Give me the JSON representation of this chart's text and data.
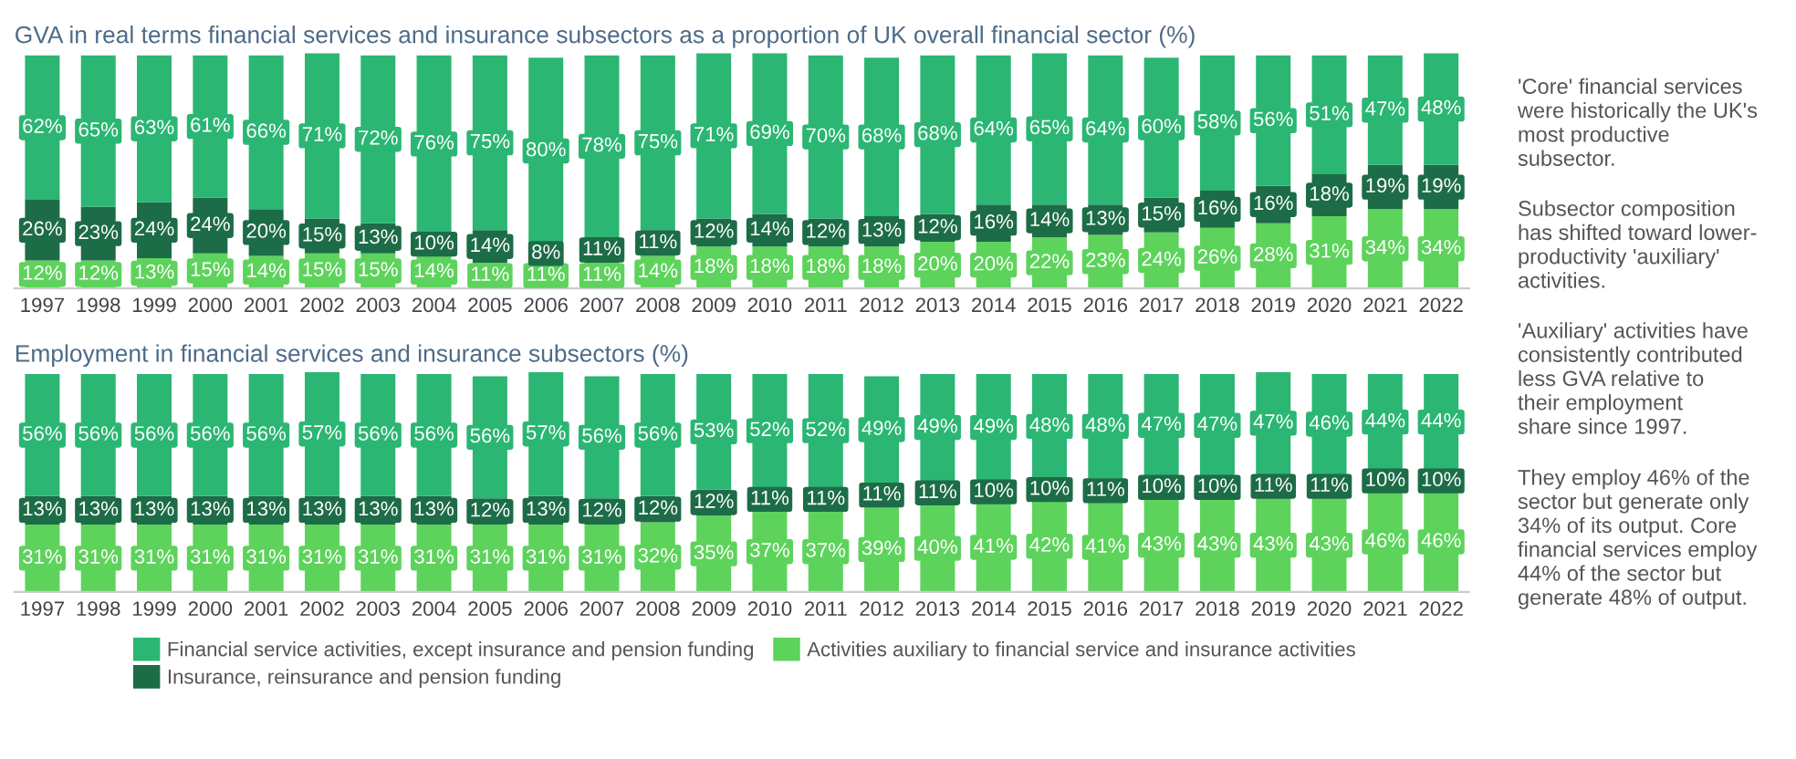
{
  "chart_data": [
    {
      "type": "bar",
      "stacked": true,
      "title": "GVA in real terms financial services and insurance subsectors as a proportion of UK overall financial sector (%)",
      "categories": [
        "1997",
        "1998",
        "1999",
        "2000",
        "2001",
        "2002",
        "2003",
        "2004",
        "2005",
        "2006",
        "2007",
        "2008",
        "2009",
        "2010",
        "2011",
        "2012",
        "2013",
        "2014",
        "2015",
        "2016",
        "2017",
        "2018",
        "2019",
        "2020",
        "2021",
        "2022"
      ],
      "ylim": [
        0,
        101
      ],
      "tick_labels": "x",
      "legend": false,
      "series": [
        {
          "color": "#5dd35c",
          "values": [
            12,
            12,
            13,
            15,
            14,
            15,
            15,
            14,
            11,
            11,
            11,
            14,
            18,
            18,
            18,
            18,
            20,
            20,
            22,
            23,
            24,
            26,
            28,
            31,
            34,
            34
          ],
          "value_labels": [
            "12%",
            "12%",
            "13%",
            "15%",
            "14%",
            "15%",
            "15%",
            "14%",
            "11%",
            "11%",
            "11%",
            "14%",
            "18%",
            "18%",
            "18%",
            "18%",
            "20%",
            "20%",
            "22%",
            "23%",
            "24%",
            "26%",
            "28%",
            "31%",
            "34%",
            "34%"
          ]
        },
        {
          "color": "#1d6c48",
          "values": [
            26,
            23,
            24,
            24,
            20,
            15,
            13,
            10,
            14,
            8,
            11,
            11,
            12,
            14,
            12,
            13,
            12,
            16,
            14,
            13,
            15,
            16,
            16,
            18,
            19,
            19
          ],
          "value_labels": [
            "26%",
            "23%",
            "24%",
            "24%",
            "20%",
            "15%",
            "13%",
            "10%",
            "14%",
            "8%",
            "11%",
            "11%",
            "12%",
            "14%",
            "12%",
            "13%",
            "12%",
            "16%",
            "14%",
            "13%",
            "15%",
            "16%",
            "16%",
            "18%",
            "19%",
            "19%"
          ]
        },
        {
          "color": "#2bb673",
          "values": [
            62,
            65,
            63,
            61,
            66,
            71,
            72,
            76,
            75,
            80,
            78,
            75,
            71,
            69,
            70,
            68,
            68,
            64,
            65,
            64,
            60,
            58,
            56,
            51,
            47,
            48
          ],
          "value_labels": [
            "62%",
            "65%",
            "63%",
            "61%",
            "66%",
            "71%",
            "72%",
            "76%",
            "75%",
            "80%",
            "78%",
            "75%",
            "71%",
            "69%",
            "70%",
            "68%",
            "68%",
            "64%",
            "65%",
            "64%",
            "60%",
            "58%",
            "56%",
            "51%",
            "47%",
            "48%"
          ]
        }
      ]
    },
    {
      "type": "bar",
      "stacked": true,
      "title": "Employment in financial services and insurance subsectors (%)",
      "categories": [
        "1997",
        "1998",
        "1999",
        "2000",
        "2001",
        "2002",
        "2003",
        "2004",
        "2005",
        "2006",
        "2007",
        "2008",
        "2009",
        "2010",
        "2011",
        "2012",
        "2013",
        "2014",
        "2015",
        "2016",
        "2017",
        "2018",
        "2019",
        "2020",
        "2021",
        "2022"
      ],
      "ylim": [
        0,
        101
      ],
      "tick_labels": "x",
      "legend": "bottom",
      "series": [
        {
          "name": "Activities auxiliary to financial service and insurance activities",
          "color": "#5dd35c",
          "values": [
            31,
            31,
            31,
            31,
            31,
            31,
            31,
            31,
            31,
            31,
            31,
            32,
            35,
            37,
            37,
            39,
            40,
            41,
            42,
            41,
            43,
            43,
            43,
            43,
            46,
            46
          ],
          "value_labels": [
            "31%",
            "31%",
            "31%",
            "31%",
            "31%",
            "31%",
            "31%",
            "31%",
            "31%",
            "31%",
            "31%",
            "32%",
            "35%",
            "37%",
            "37%",
            "39%",
            "40%",
            "41%",
            "42%",
            "41%",
            "43%",
            "43%",
            "43%",
            "43%",
            "46%",
            "46%"
          ]
        },
        {
          "name": "Insurance, reinsurance and pension funding",
          "color": "#1d6c48",
          "values": [
            13,
            13,
            13,
            13,
            13,
            13,
            13,
            13,
            12,
            13,
            12,
            12,
            12,
            11,
            11,
            11,
            11,
            10,
            10,
            11,
            10,
            10,
            11,
            11,
            10,
            10
          ],
          "value_labels": [
            "13%",
            "13%",
            "13%",
            "13%",
            "13%",
            "13%",
            "13%",
            "13%",
            "12%",
            "13%",
            "12%",
            "12%",
            "12%",
            "11%",
            "11%",
            "11%",
            "11%",
            "10%",
            "10%",
            "11%",
            "10%",
            "10%",
            "11%",
            "11%",
            "10%",
            "10%"
          ]
        },
        {
          "name": "Financial service activities, except insurance and pension funding",
          "color": "#2bb673",
          "values": [
            56,
            56,
            56,
            56,
            56,
            57,
            56,
            56,
            56,
            57,
            56,
            56,
            53,
            52,
            52,
            49,
            49,
            49,
            48,
            48,
            47,
            47,
            47,
            46,
            44,
            44
          ],
          "value_labels": [
            "56%",
            "56%",
            "56%",
            "56%",
            "56%",
            "57%",
            "56%",
            "56%",
            "56%",
            "57%",
            "56%",
            "56%",
            "53%",
            "52%",
            "52%",
            "49%",
            "49%",
            "49%",
            "48%",
            "48%",
            "47%",
            "47%",
            "47%",
            "46%",
            "44%",
            "44%"
          ]
        }
      ]
    },
    {
      "type": "other",
      "annotations": [
        "'Core' financial services\nwere historically the UK's\nmost productive\nsubsector.",
        "Subsector composition\nhas shifted toward lower-\nproductivity 'auxiliary'\nactivities.",
        "'Auxiliary' activities have\nconsistently contributed\nless GVA relative to\ntheir employment\nshare since 1997.",
        "They employ 46% of the\nsector but generate only\n34% of its output. Core\nfinancial services employ\n44% of the sector but\ngenerate 48% of output."
      ]
    }
  ]
}
